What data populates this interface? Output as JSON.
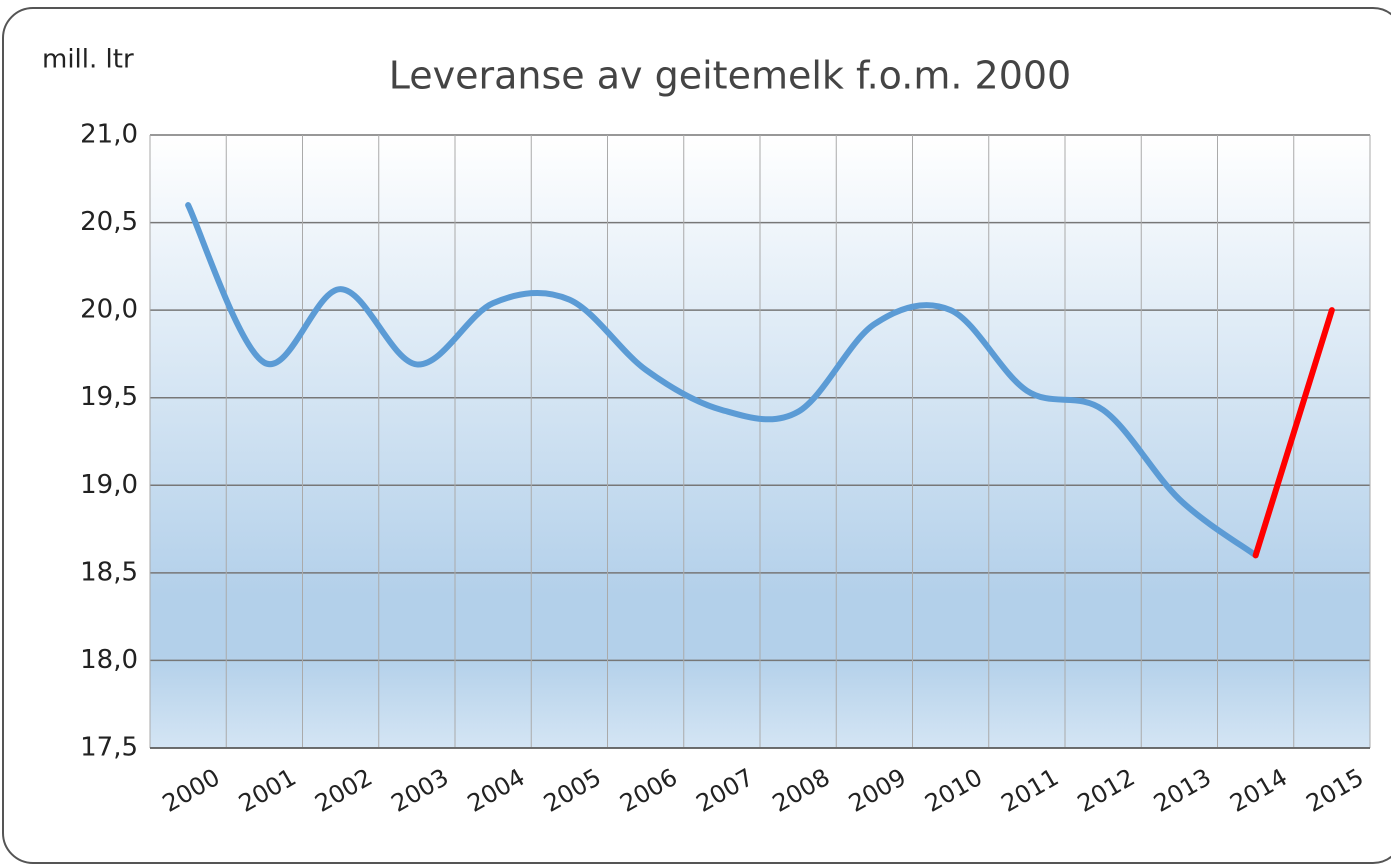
{
  "chart_data": {
    "type": "line",
    "title": "Leveranse av geitemelk f.o.m. 2000",
    "y_axis_label": "mill. ltr",
    "categories": [
      "2000",
      "2001",
      "2002",
      "2003",
      "2004",
      "2005",
      "2006",
      "2007",
      "2008",
      "2009",
      "2010",
      "2011",
      "2012",
      "2013",
      "2014",
      "2015"
    ],
    "series": [
      {
        "color": "#5b9bd5",
        "values": [
          20.6,
          19.7,
          20.12,
          19.69,
          20.04,
          20.06,
          19.66,
          19.43,
          19.42,
          19.92,
          20.0,
          19.54,
          19.43,
          18.92,
          18.6,
          null
        ]
      },
      {
        "color": "#ff0000",
        "values": [
          null,
          null,
          null,
          null,
          null,
          null,
          null,
          null,
          null,
          null,
          null,
          null,
          null,
          null,
          18.6,
          20.0
        ]
      }
    ],
    "ylim": [
      17.5,
      21.0
    ],
    "yticks": [
      {
        "value": 17.5,
        "label": "17,5"
      },
      {
        "value": 18.0,
        "label": "18,0"
      },
      {
        "value": 18.5,
        "label": "18,5"
      },
      {
        "value": 19.0,
        "label": "19,0"
      },
      {
        "value": 19.5,
        "label": "19,5"
      },
      {
        "value": 20.0,
        "label": "20,0"
      },
      {
        "value": 20.5,
        "label": "20,5"
      },
      {
        "value": 21.0,
        "label": "21,0"
      }
    ],
    "grid": true,
    "smooth": true
  }
}
